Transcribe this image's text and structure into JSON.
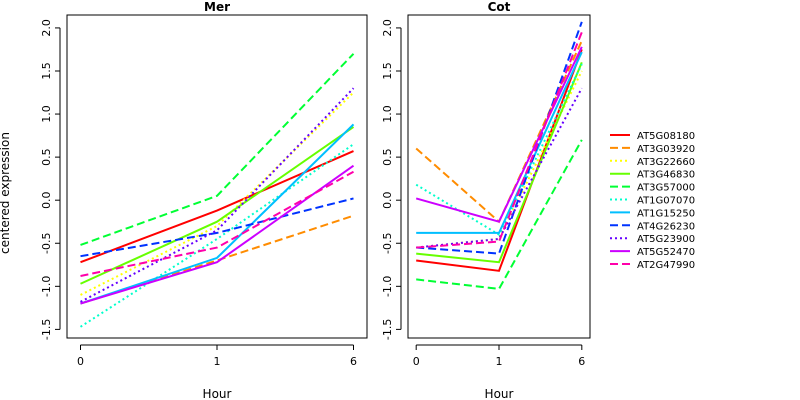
{
  "chart_data": {
    "type": "line",
    "ylabel": "centered expression",
    "xlabel": "Hour",
    "x": [
      0,
      1,
      6
    ],
    "x_tick_labels": [
      "0",
      "1",
      "6"
    ],
    "ylim": [
      -1.6,
      2.15
    ],
    "y_ticks": [
      -1.5,
      -1.0,
      -0.5,
      0.0,
      0.5,
      1.0,
      1.5,
      2.0
    ],
    "y_tick_labels": [
      "-1.5",
      "-1.0",
      "-0.5",
      "0.0",
      "0.5",
      "1.0",
      "1.5",
      "2.0"
    ],
    "legend_placement": "right",
    "series": [
      {
        "name": "AT5G08180",
        "color": "#ff0000",
        "dash": "solid"
      },
      {
        "name": "AT3G03920",
        "color": "#ff8c00",
        "dash": "dashed"
      },
      {
        "name": "AT3G22660",
        "color": "#ffff00",
        "dash": "dotted"
      },
      {
        "name": "AT3G46830",
        "color": "#66ff00",
        "dash": "solid"
      },
      {
        "name": "AT3G57000",
        "color": "#00ff33",
        "dash": "dashed"
      },
      {
        "name": "AT1G07070",
        "color": "#00ffcc",
        "dash": "dotted"
      },
      {
        "name": "AT1G15250",
        "color": "#00bfff",
        "dash": "solid"
      },
      {
        "name": "AT4G26230",
        "color": "#0033ff",
        "dash": "dashed"
      },
      {
        "name": "AT5G23900",
        "color": "#6600ff",
        "dash": "dotted"
      },
      {
        "name": "AT5G52470",
        "color": "#cc00ff",
        "dash": "solid"
      },
      {
        "name": "AT2G47990",
        "color": "#ff00aa",
        "dash": "dashed"
      }
    ],
    "panels": [
      {
        "title": "Mer",
        "values": [
          [
            -0.72,
            -0.12,
            0.57
          ],
          [
            -1.2,
            -0.7,
            -0.18
          ],
          [
            -1.1,
            -0.3,
            1.25
          ],
          [
            -0.97,
            -0.25,
            0.85
          ],
          [
            -0.52,
            0.05,
            1.7
          ],
          [
            -1.47,
            -0.45,
            0.65
          ],
          [
            -1.2,
            -0.67,
            0.88
          ],
          [
            -0.65,
            -0.38,
            0.02
          ],
          [
            -1.18,
            -0.35,
            1.3
          ],
          [
            -1.2,
            -0.72,
            0.4
          ],
          [
            -0.88,
            -0.55,
            0.33
          ]
        ]
      },
      {
        "title": "Cot",
        "values": [
          [
            -0.7,
            -0.82,
            1.75
          ],
          [
            0.6,
            -0.25,
            1.85
          ],
          [
            -0.55,
            -0.45,
            1.5
          ],
          [
            -0.62,
            -0.72,
            1.6
          ],
          [
            -0.92,
            -1.03,
            0.7
          ],
          [
            0.18,
            -0.4,
            1.58
          ],
          [
            -0.38,
            -0.38,
            1.72
          ],
          [
            -0.55,
            -0.62,
            2.07
          ],
          [
            -0.55,
            -0.45,
            1.3
          ],
          [
            0.02,
            -0.25,
            1.78
          ],
          [
            -0.55,
            -0.48,
            1.95
          ]
        ]
      }
    ]
  }
}
